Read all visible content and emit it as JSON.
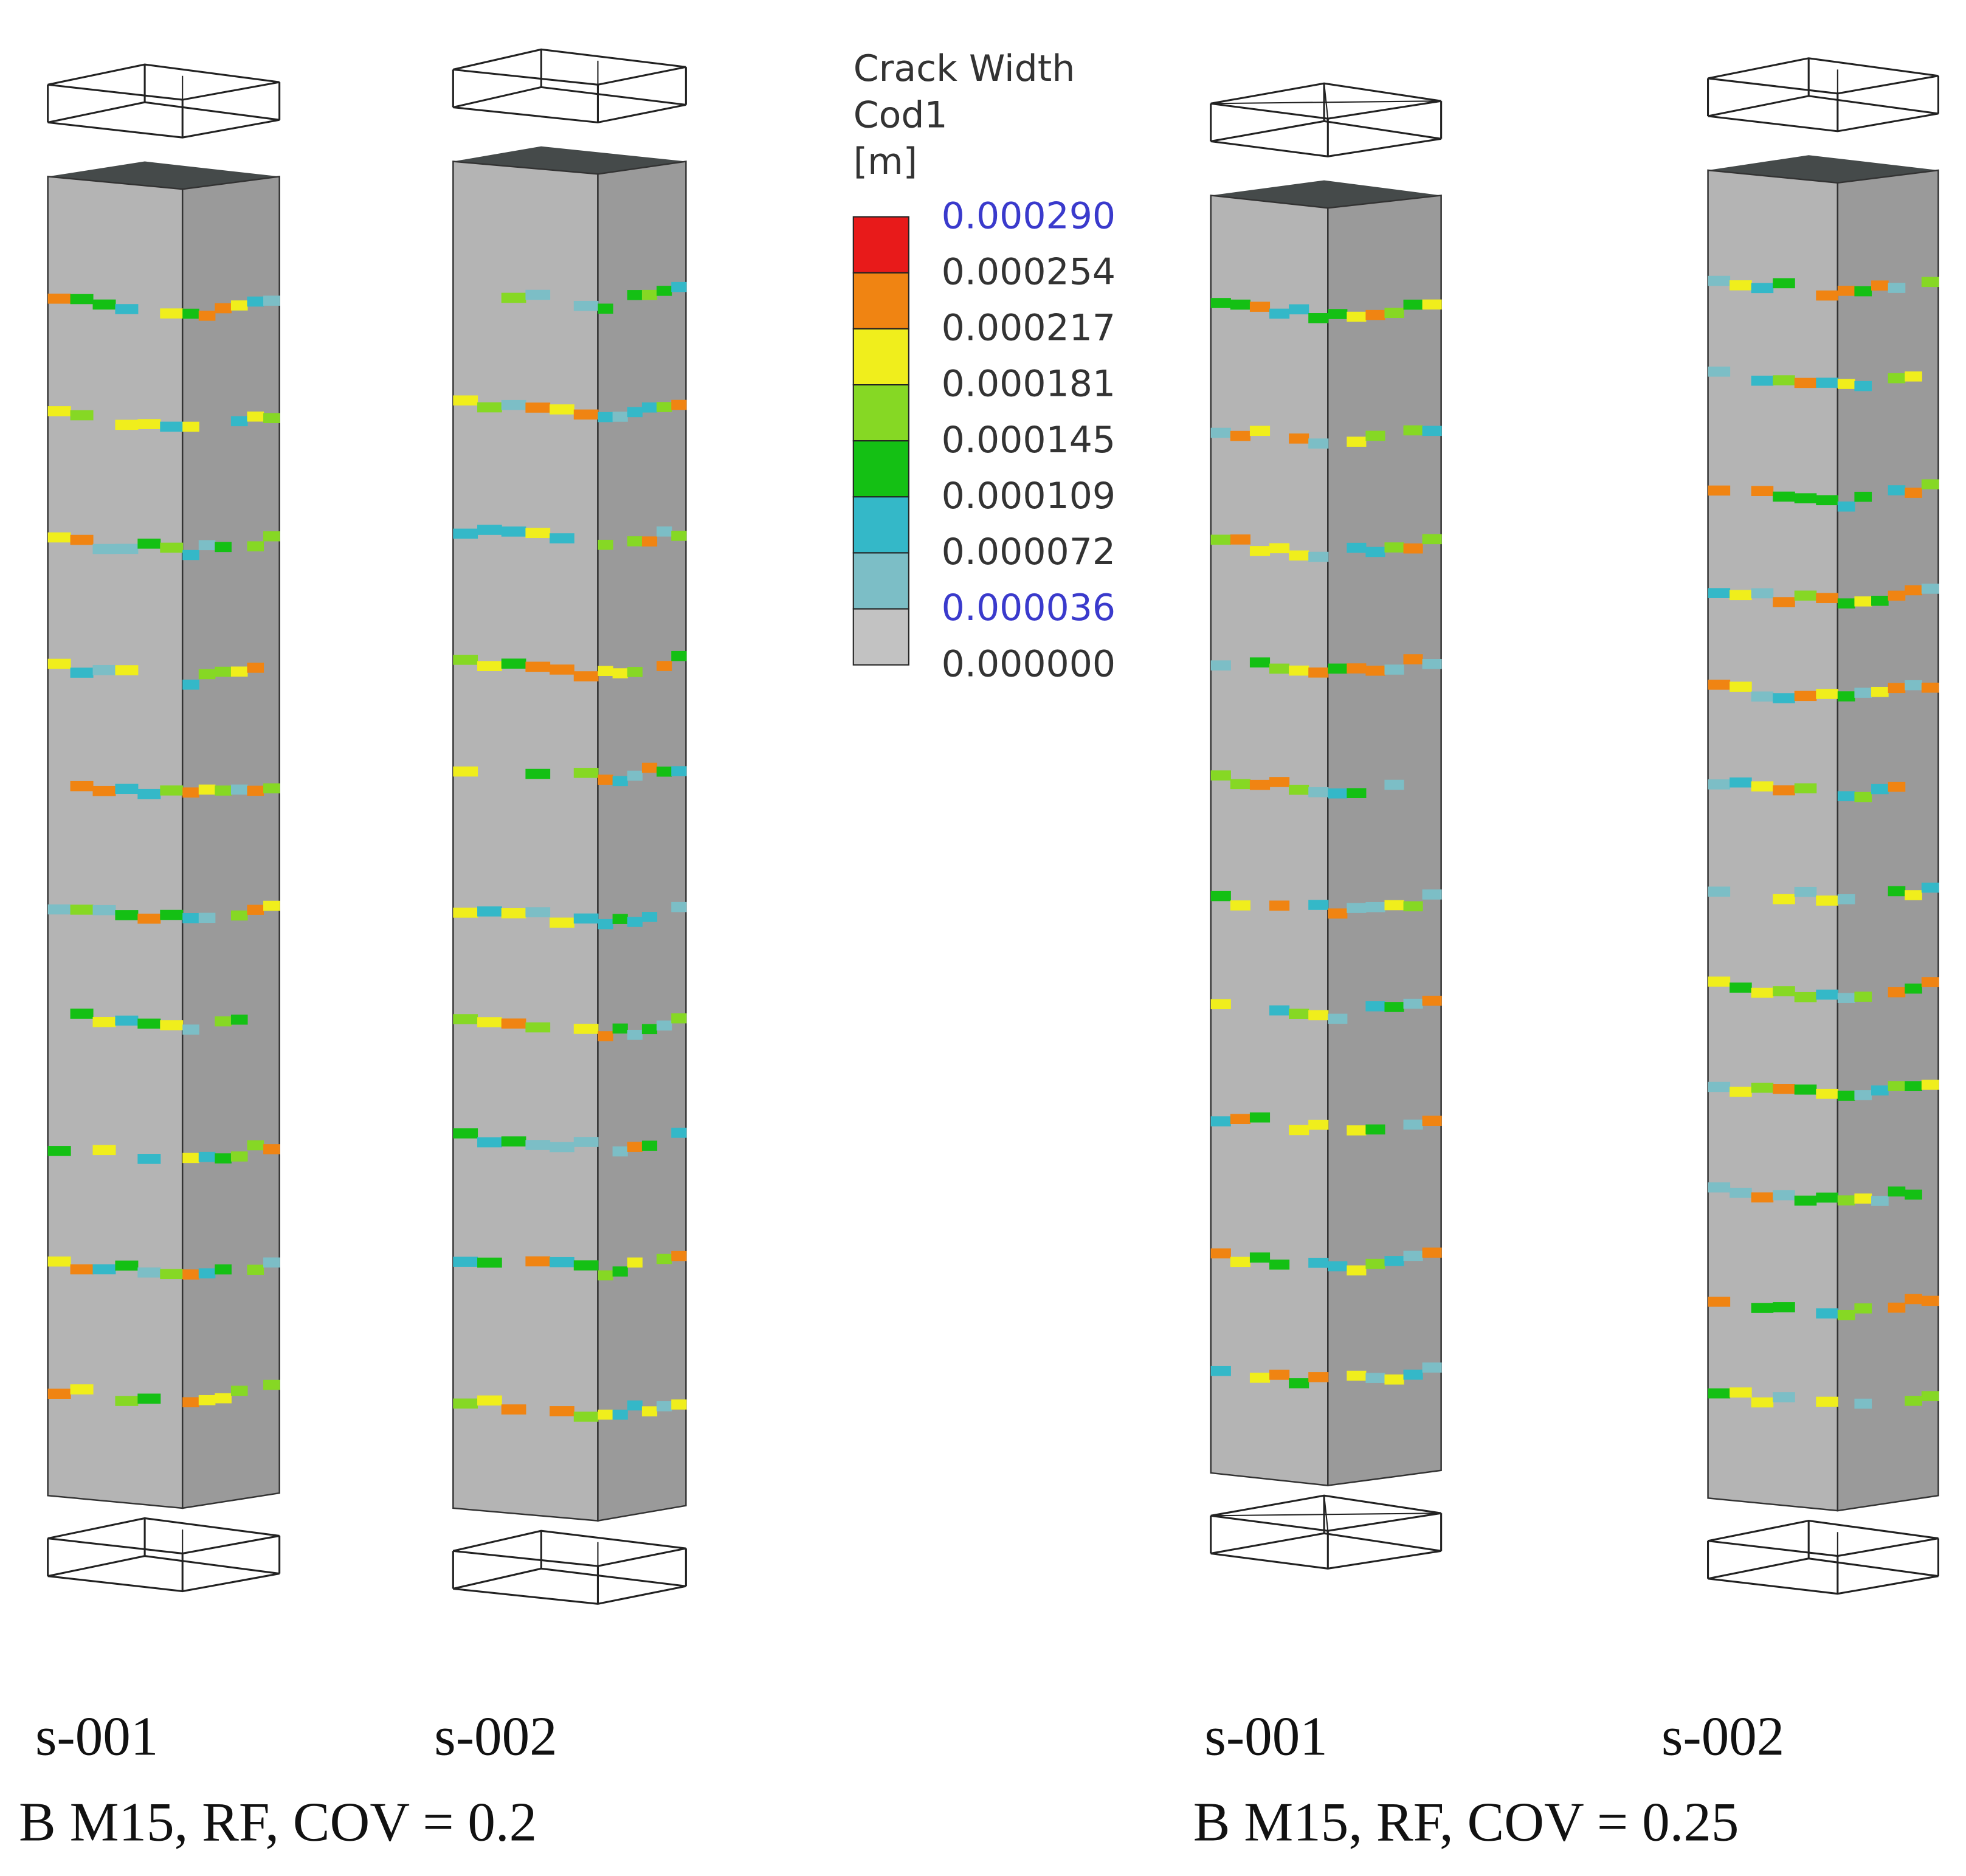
{
  "legend": {
    "title": [
      "Crack Width",
      "Cod1",
      "[m]"
    ],
    "colors": [
      "#e81a1a",
      "#f08412",
      "#f0ee1c",
      "#86d824",
      "#14c014",
      "#34b8c8",
      "#7cbec6",
      "#c2c2c2"
    ],
    "levels": [
      {
        "label": "0.000290",
        "color": "#3a3acc"
      },
      {
        "label": "0.000254",
        "color": "#333333"
      },
      {
        "label": "0.000217",
        "color": "#333333"
      },
      {
        "label": "0.000181",
        "color": "#333333"
      },
      {
        "label": "0.000145",
        "color": "#333333"
      },
      {
        "label": "0.000109",
        "color": "#333333"
      },
      {
        "label": "0.000072",
        "color": "#333333"
      },
      {
        "label": "0.000036",
        "color": "#3a3acc"
      },
      {
        "label": "0.000000",
        "color": "#333333"
      }
    ]
  },
  "panels": [
    {
      "label": "s-001"
    },
    {
      "label": "s-002"
    },
    {
      "label": "s-001"
    },
    {
      "label": "s-002"
    }
  ],
  "captions": [
    "B M15, RF, COV = 0.2",
    "B M15, RF, COV = 0.25"
  ]
}
